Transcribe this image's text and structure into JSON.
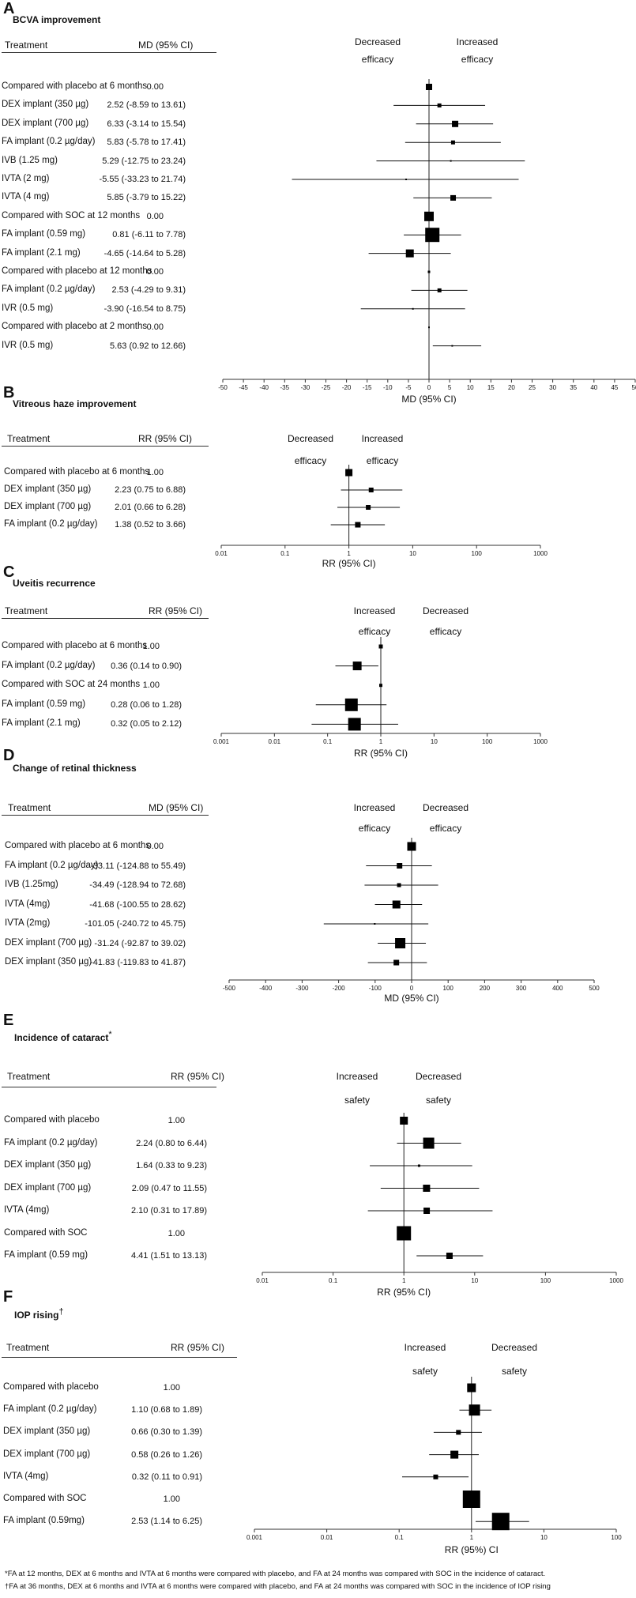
{
  "chart_data": [
    {
      "panel_letter": "A",
      "title": "BCVA improvement",
      "type": "forest",
      "scale": "linear",
      "col_treatment": "Treatment",
      "col_effect": "MD (95% CI)",
      "left_note": [
        "Decreased",
        "efficacy"
      ],
      "right_note": [
        "Increased",
        "efficacy"
      ],
      "xlabel": "MD (95% CI)",
      "xlim": [
        -50,
        50
      ],
      "ticks": [
        "-50",
        "-45",
        "-40",
        "-35",
        "-30",
        "-25",
        "-20",
        "-15",
        "-10",
        "-5",
        "0",
        "5",
        "10",
        "15",
        "20",
        "25",
        "30",
        "35",
        "40",
        "45",
        "50"
      ],
      "rows": [
        {
          "label": "Compared with placebo at 6 months",
          "ci_text": "0.00",
          "est": 0,
          "lo": 0,
          "hi": 0,
          "size": 8,
          "ref": true
        },
        {
          "label": "DEX implant (350 µg)",
          "ci_text": "2.52 (-8.59 to 13.61)",
          "est": 2.52,
          "lo": -8.59,
          "hi": 13.61,
          "size": 5
        },
        {
          "label": "DEX implant (700 µg)",
          "ci_text": "6.33 (-3.14 to 15.54)",
          "est": 6.33,
          "lo": -3.14,
          "hi": 15.54,
          "size": 8
        },
        {
          "label": "FA implant (0.2 µg/day)",
          "ci_text": "5.83 (-5.78 to 17.41)",
          "est": 5.83,
          "lo": -5.78,
          "hi": 17.41,
          "size": 5
        },
        {
          "label": "IVB (1.25 mg)",
          "ci_text": "5.29 (-12.75 to 23.24)",
          "est": 5.29,
          "lo": -12.75,
          "hi": 23.24,
          "size": 2
        },
        {
          "label": "IVTA (2 mg)",
          "ci_text": "-5.55 (-33.23 to 21.74)",
          "est": -5.55,
          "lo": -33.23,
          "hi": 21.74,
          "size": 2
        },
        {
          "label": "IVTA (4 mg)",
          "ci_text": "5.85 (-3.79 to 15.22)",
          "est": 5.85,
          "lo": -3.79,
          "hi": 15.22,
          "size": 7
        },
        {
          "label": "Compared with SOC at 12 months",
          "ci_text": "0.00",
          "est": 0,
          "lo": 0,
          "hi": 0,
          "size": 12,
          "ref": true
        },
        {
          "label": "FA implant (0.59 mg)",
          "ci_text": "0.81 (-6.11 to 7.78)",
          "est": 0.81,
          "lo": -6.11,
          "hi": 7.78,
          "size": 18
        },
        {
          "label": "FA implant (2.1 mg)",
          "ci_text": "-4.65 (-14.64 to 5.28)",
          "est": -4.65,
          "lo": -14.64,
          "hi": 5.28,
          "size": 10
        },
        {
          "label": "Compared with placebo at 12 months",
          "ci_text": "0.00",
          "est": 0,
          "lo": 0,
          "hi": 0,
          "size": 3,
          "ref": true
        },
        {
          "label": "FA implant (0.2 µg/day)",
          "ci_text": "2.53 (-4.29 to 9.31)",
          "est": 2.53,
          "lo": -4.29,
          "hi": 9.31,
          "size": 5
        },
        {
          "label": "IVR (0.5 mg)",
          "ci_text": "-3.90 (-16.54 to 8.75)",
          "est": -3.9,
          "lo": -16.54,
          "hi": 8.75,
          "size": 2
        },
        {
          "label": "Compared with placebo at 2 months",
          "ci_text": "0.00",
          "est": 0,
          "lo": 0,
          "hi": 0,
          "size": 2,
          "ref": true
        },
        {
          "label": "IVR (0.5 mg)",
          "ci_text": "5.63 (0.92 to 12.66)",
          "est": 5.63,
          "lo": 0.92,
          "hi": 12.66,
          "size": 2
        }
      ]
    },
    {
      "panel_letter": "B",
      "title": "Vitreous haze improvement",
      "type": "forest",
      "scale": "log",
      "col_treatment": "Treatment",
      "col_effect": "RR (95% CI)",
      "left_note": [
        "Decreased",
        "efficacy"
      ],
      "right_note": [
        "Increased",
        "efficacy"
      ],
      "xlabel": "RR (95% CI)",
      "xlim": [
        0.01,
        1000
      ],
      "ticks": [
        "0.01",
        "0.1",
        "1",
        "10",
        "100",
        "1000"
      ],
      "rows": [
        {
          "label": "Compared with placebo at 6 months",
          "ci_text": "1.00",
          "est": 1,
          "lo": 1,
          "hi": 1,
          "size": 9,
          "ref": true
        },
        {
          "label": "DEX implant (350 µg)",
          "ci_text": "2.23 (0.75 to 6.88)",
          "est": 2.23,
          "lo": 0.75,
          "hi": 6.88,
          "size": 6
        },
        {
          "label": "DEX implant (700 µg)",
          "ci_text": "2.01 (0.66 to 6.28)",
          "est": 2.01,
          "lo": 0.66,
          "hi": 6.28,
          "size": 6
        },
        {
          "label": "FA implant (0.2 µg/day)",
          "ci_text": "1.38 (0.52 to 3.66)",
          "est": 1.38,
          "lo": 0.52,
          "hi": 3.66,
          "size": 7
        }
      ]
    },
    {
      "panel_letter": "C",
      "title": "Uveitis recurrence",
      "type": "forest",
      "scale": "log",
      "col_treatment": "Treatment",
      "col_effect": "RR (95% CI)",
      "left_note": [
        "Increased",
        "efficacy"
      ],
      "right_note": [
        "Decreased",
        "efficacy"
      ],
      "xlabel": "RR (95% CI)",
      "xlim": [
        0.001,
        1000
      ],
      "ticks": [
        "0.001",
        "0.01",
        "0.1",
        "1",
        "10",
        "100",
        "1000"
      ],
      "rows": [
        {
          "label": "Compared with placebo at 6 months",
          "ci_text": "1.00",
          "est": 1,
          "lo": 1,
          "hi": 1,
          "size": 5,
          "ref": true
        },
        {
          "label": "FA implant (0.2 µg/day)",
          "ci_text": "0.36 (0.14 to 0.90)",
          "est": 0.36,
          "lo": 0.14,
          "hi": 0.9,
          "size": 11
        },
        {
          "label": "Compared with SOC at 24 months",
          "ci_text": "1.00",
          "est": 1,
          "lo": 1,
          "hi": 1,
          "size": 4,
          "ref": true
        },
        {
          "label": "FA implant (0.59 mg)",
          "ci_text": "0.28 (0.06 to 1.28)",
          "est": 0.28,
          "lo": 0.06,
          "hi": 1.28,
          "size": 16
        },
        {
          "label": "FA implant (2.1 mg)",
          "ci_text": "0.32 (0.05 to 2.12)",
          "est": 0.32,
          "lo": 0.05,
          "hi": 2.12,
          "size": 16
        }
      ]
    },
    {
      "panel_letter": "D",
      "title": "Change of retinal thickness",
      "type": "forest",
      "scale": "linear",
      "col_treatment": "Treatment",
      "col_effect": "MD (95% CI)",
      "left_note": [
        "Increased",
        "efficacy"
      ],
      "right_note": [
        "Decreased",
        "efficacy"
      ],
      "xlabel": "MD (95% CI)",
      "xlim": [
        -500,
        500
      ],
      "ticks": [
        "-500",
        "-400",
        "-300",
        "-200",
        "-100",
        "0",
        "100",
        "200",
        "300",
        "400",
        "500"
      ],
      "rows": [
        {
          "label": "Compared with placebo at 6 months",
          "ci_text": "0.00",
          "est": 0,
          "lo": 0,
          "hi": 0,
          "size": 11,
          "ref": true
        },
        {
          "label": "FA implant (0.2 µg/day)",
          "ci_text": "-33.11 (-124.88 to 55.49)",
          "est": -33.11,
          "lo": -124.88,
          "hi": 55.49,
          "size": 7
        },
        {
          "label": "IVB (1.25mg)",
          "ci_text": "-34.49 (-128.94 to 72.68)",
          "est": -34.49,
          "lo": -128.94,
          "hi": 72.68,
          "size": 5
        },
        {
          "label": "IVTA (4mg)",
          "ci_text": "-41.68 (-100.55 to 28.62)",
          "est": -41.68,
          "lo": -100.55,
          "hi": 28.62,
          "size": 10
        },
        {
          "label": "IVTA (2mg)",
          "ci_text": "-101.05 (-240.72 to 45.75)",
          "est": -101.05,
          "lo": -240.72,
          "hi": 45.75,
          "size": 2
        },
        {
          "label": "DEX implant (700 µg)",
          "ci_text": "-31.24 (-92.87 to 39.02)",
          "est": -31.24,
          "lo": -92.87,
          "hi": 39.02,
          "size": 13
        },
        {
          "label": "DEX implant (350 µg)",
          "ci_text": "-41.83 (-119.83 to 41.87)",
          "est": -41.83,
          "lo": -119.83,
          "hi": 41.87,
          "size": 7
        }
      ]
    },
    {
      "panel_letter": "E",
      "title": "Incidence of cataract",
      "title_mark": "*",
      "type": "forest",
      "scale": "log",
      "col_treatment": "Treatment",
      "col_effect": "RR (95% CI)",
      "left_note": [
        "Increased",
        "safety"
      ],
      "right_note": [
        "Decreased",
        "safety"
      ],
      "xlabel": "RR (95% CI)",
      "xlim": [
        0.01,
        1000
      ],
      "ticks": [
        "0.01",
        "0.1",
        "1",
        "10",
        "100",
        "1000"
      ],
      "rows": [
        {
          "label": "Compared with placebo",
          "ci_text": "1.00",
          "est": 1,
          "lo": 1,
          "hi": 1,
          "size": 10,
          "ref": true
        },
        {
          "label": "FA implant (0.2 µg/day)",
          "ci_text": "2.24 (0.80 to 6.44)",
          "est": 2.24,
          "lo": 0.8,
          "hi": 6.44,
          "size": 14
        },
        {
          "label": "DEX implant (350 µg)",
          "ci_text": "1.64 (0.33 to 9.23)",
          "est": 1.64,
          "lo": 0.33,
          "hi": 9.23,
          "size": 3
        },
        {
          "label": "DEX implant (700 µg)",
          "ci_text": "2.09 (0.47 to 11.55)",
          "est": 2.09,
          "lo": 0.47,
          "hi": 11.55,
          "size": 9
        },
        {
          "label": "IVTA (4mg)",
          "ci_text": "2.10 (0.31 to 17.89)",
          "est": 2.1,
          "lo": 0.31,
          "hi": 17.89,
          "size": 8
        },
        {
          "label": "Compared with SOC",
          "ci_text": "1.00",
          "est": 1,
          "lo": 1,
          "hi": 1,
          "size": 18,
          "ref": true
        },
        {
          "label": "FA implant (0.59 mg)",
          "ci_text": "4.41 (1.51 to 13.13)",
          "est": 4.41,
          "lo": 1.51,
          "hi": 13.13,
          "size": 8
        }
      ]
    },
    {
      "panel_letter": "F",
      "title": "IOP rising",
      "title_mark": "†",
      "type": "forest",
      "scale": "log",
      "col_treatment": "Treatment",
      "col_effect": "RR (95% CI)",
      "left_note": [
        "Increased",
        "safety"
      ],
      "right_note": [
        "Decreased",
        "safety"
      ],
      "xlabel": "RR (95%) CI",
      "xlim": [
        0.001,
        100
      ],
      "ticks": [
        "0.001",
        "0.01",
        "0.1",
        "1",
        "10",
        "100"
      ],
      "rows": [
        {
          "label": "Compared with placebo",
          "ci_text": "1.00",
          "est": 1,
          "lo": 1,
          "hi": 1,
          "size": 11,
          "ref": true
        },
        {
          "label": "FA implant (0.2 µg/day)",
          "ci_text": "1.10 (0.68 to 1.89)",
          "est": 1.1,
          "lo": 0.68,
          "hi": 1.89,
          "size": 14
        },
        {
          "label": "DEX implant (350 µg)",
          "ci_text": "0.66 (0.30 to 1.39)",
          "est": 0.66,
          "lo": 0.3,
          "hi": 1.39,
          "size": 6
        },
        {
          "label": "DEX implant (700 µg)",
          "ci_text": "0.58 (0.26 to 1.26)",
          "est": 0.58,
          "lo": 0.26,
          "hi": 1.26,
          "size": 10
        },
        {
          "label": "IVTA (4mg)",
          "ci_text": "0.32 (0.11 to 0.91)",
          "est": 0.32,
          "lo": 0.11,
          "hi": 0.91,
          "size": 6
        },
        {
          "label": "Compared with SOC",
          "ci_text": "1.00",
          "est": 1,
          "lo": 1,
          "hi": 1,
          "size": 22,
          "ref": true
        },
        {
          "label": "FA implant (0.59mg)",
          "ci_text": "2.53 (1.14 to 6.25)",
          "est": 2.53,
          "lo": 1.14,
          "hi": 6.25,
          "size": 22
        }
      ]
    }
  ],
  "footnotes": [
    "*FA at 12 months, DEX at 6 months and IVTA at 6 months were compared with placebo, and FA at 24 months was compared with SOC in the incidence of cataract.",
    "†FA at 36 months, DEX at 6 months and IVTA at 6 months were compared with placebo, and FA at 24 months was compared with SOC in the incidence of IOP rising"
  ]
}
